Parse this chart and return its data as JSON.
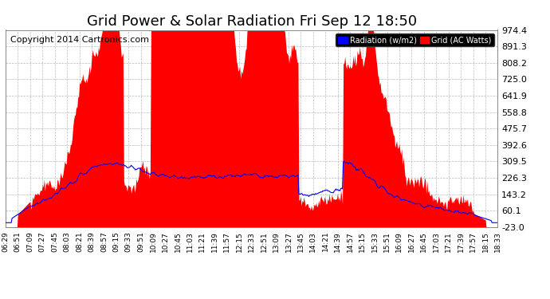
{
  "title": "Grid Power & Solar Radiation Fri Sep 12 18:50",
  "copyright": "Copyright 2014 Cartronics.com",
  "legend_radiation": "Radiation (w/m2)",
  "legend_grid": "Grid (AC Watts)",
  "yticks": [
    -23.0,
    60.1,
    143.2,
    226.3,
    309.5,
    392.6,
    475.7,
    558.8,
    641.9,
    725.0,
    808.2,
    891.3,
    974.4
  ],
  "ymin": -23.0,
  "ymax": 974.4,
  "background_color": "#ffffff",
  "grid_color": "#bbbbbb",
  "fill_color": "#ff0000",
  "line_color": "#0000ff",
  "title_fontsize": 13,
  "copyright_fontsize": 8,
  "xtick_fontsize": 6.5,
  "ytick_fontsize": 8,
  "x_labels": [
    "06:29",
    "06:51",
    "07:09",
    "07:27",
    "07:45",
    "08:03",
    "08:21",
    "08:39",
    "08:57",
    "09:15",
    "09:33",
    "09:51",
    "10:09",
    "10:27",
    "10:45",
    "11:03",
    "11:21",
    "11:39",
    "11:57",
    "12:15",
    "12:33",
    "12:51",
    "13:09",
    "13:27",
    "13:45",
    "14:03",
    "14:21",
    "14:39",
    "14:57",
    "15:15",
    "15:33",
    "15:51",
    "16:09",
    "16:27",
    "16:45",
    "17:03",
    "17:21",
    "17:39",
    "17:57",
    "18:15",
    "18:33"
  ],
  "num_points": 600
}
